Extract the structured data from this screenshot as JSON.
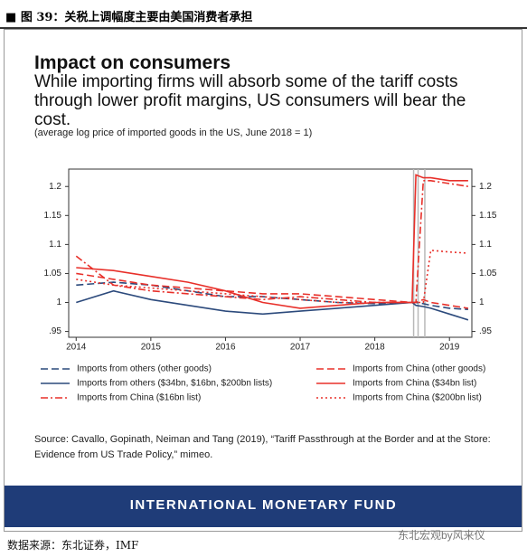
{
  "document": {
    "header": "图 39：关税上调幅度主要由美国消费者承担",
    "source": "Source: Cavallo, Gopinath, Neiman and Tang (2019), “Tariff Passthrough at the Border and at the Store: Evidence from US Trade Policy,” mimeo.",
    "banner": "INTERNATIONAL MONETARY FUND",
    "watermark": "东北宏观by风来仪",
    "footer": "数据来源：东北证券，IMF"
  },
  "chart_data": {
    "type": "line",
    "title": "Impact on consumers",
    "subtitle": "While importing firms will absorb some of the tariff costs through lower profit margins, US consumers will bear the cost.",
    "note": "(average log price of imported goods in the US, June 2018 = 1)",
    "x": [
      2014,
      2014.5,
      2015,
      2015.5,
      2016,
      2016.5,
      2017,
      2017.5,
      2018,
      2018.5,
      2018.55,
      2018.65,
      2018.75,
      2019,
      2019.25
    ],
    "xlim": [
      2013.9,
      2019.3
    ],
    "xticks": [
      2014,
      2015,
      2016,
      2017,
      2018,
      2019
    ],
    "ylim": [
      0.94,
      1.23
    ],
    "yticks": [
      {
        "value": 0.95,
        "label": ".95"
      },
      1,
      1.05,
      1.1,
      1.15,
      1.2
    ],
    "vlines": [
      2018.52,
      2018.58,
      2018.67
    ],
    "vline_color": "#b8b8b8",
    "series": [
      {
        "name": "Imports from others (other goods)",
        "color": "#2c4a7c",
        "style": "dashed",
        "values": [
          1.03,
          1.035,
          1.03,
          1.02,
          1.01,
          1.01,
          1.005,
          1.0,
          0.998,
          1.0,
          1.0,
          0.998,
          0.995,
          0.99,
          0.988
        ]
      },
      {
        "name": "Imports from others ($34bn, $16bn, $200bn lists)",
        "color": "#2c4a7c",
        "style": "solid",
        "values": [
          1.0,
          1.02,
          1.005,
          0.995,
          0.985,
          0.98,
          0.985,
          0.99,
          0.995,
          1.0,
          0.995,
          0.993,
          0.99,
          0.98,
          0.97
        ]
      },
      {
        "name": "Imports from China ($16bn list)",
        "color": "#e8302a",
        "style": "dashdot",
        "values": [
          1.08,
          1.03,
          1.02,
          1.015,
          1.01,
          1.005,
          1.01,
          1.005,
          1.0,
          1.0,
          1.0,
          1.21,
          1.21,
          1.205,
          1.2
        ]
      },
      {
        "name": "Imports from China (other goods)",
        "color": "#e8302a",
        "style": "dashed",
        "values": [
          1.05,
          1.04,
          1.03,
          1.025,
          1.02,
          1.015,
          1.015,
          1.01,
          1.005,
          1.0,
          1.0,
          1.005,
          1.0,
          0.995,
          0.99
        ]
      },
      {
        "name": "Imports from China ($34bn list)",
        "color": "#e8302a",
        "style": "solid",
        "values": [
          1.06,
          1.055,
          1.045,
          1.035,
          1.02,
          1.0,
          0.99,
          0.995,
          1.0,
          1.0,
          1.22,
          1.215,
          1.215,
          1.21,
          1.21
        ]
      },
      {
        "name": "Imports from China ($200bn list)",
        "color": "#e8302a",
        "style": "dotted",
        "values": [
          1.04,
          1.03,
          1.025,
          1.02,
          1.015,
          1.01,
          1.005,
          1.0,
          1.0,
          1.0,
          1.0,
          1.0,
          1.09,
          1.087,
          1.085
        ]
      }
    ]
  }
}
